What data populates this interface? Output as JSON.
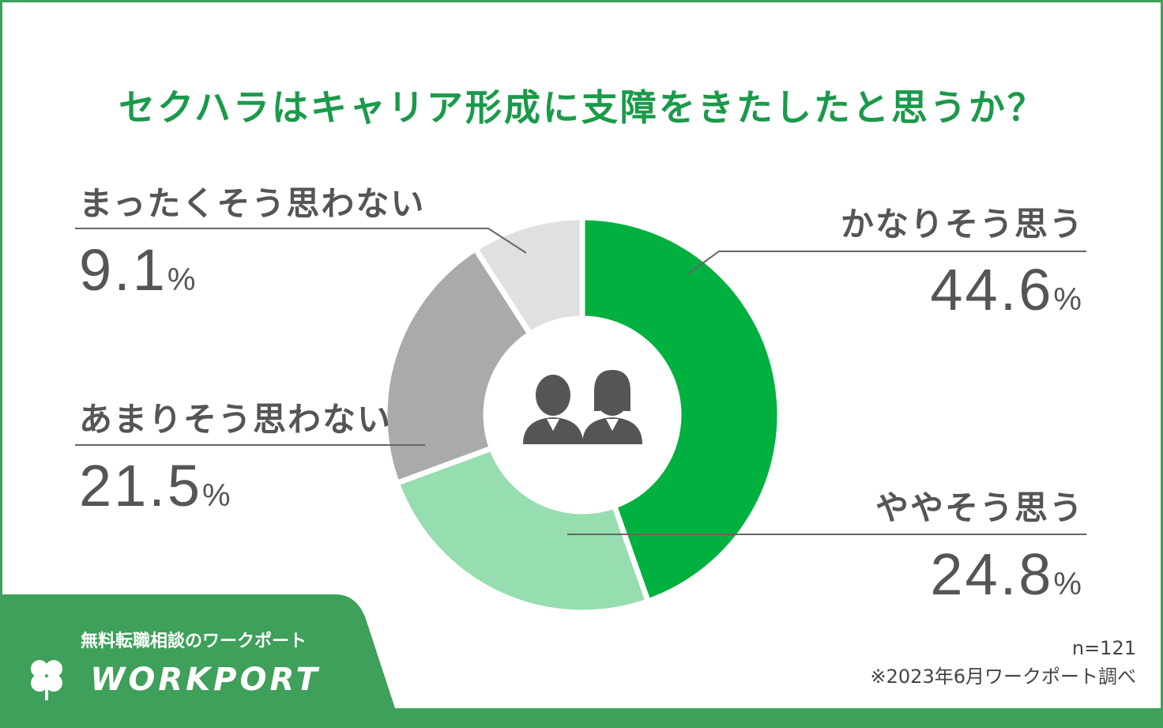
{
  "chart_data": {
    "type": "donut",
    "title": "セクハラはキャリア形成に支障をきたしたと思うか？",
    "categories": [
      "かなりそう思う",
      "ややそう思う",
      "あまりそう思わない",
      "まったくそう思わない"
    ],
    "values": [
      44.6,
      24.8,
      21.5,
      9.1
    ],
    "value_unit": "%",
    "colors": [
      "#00b140",
      "#96ddb0",
      "#aaaaaa",
      "#e0e0e0"
    ],
    "brand_tagline": "無料転職相談のワークポート",
    "brand": "WORKPORT",
    "sample_size": "n=121",
    "source": "※2023年6月ワークポート調べ"
  }
}
